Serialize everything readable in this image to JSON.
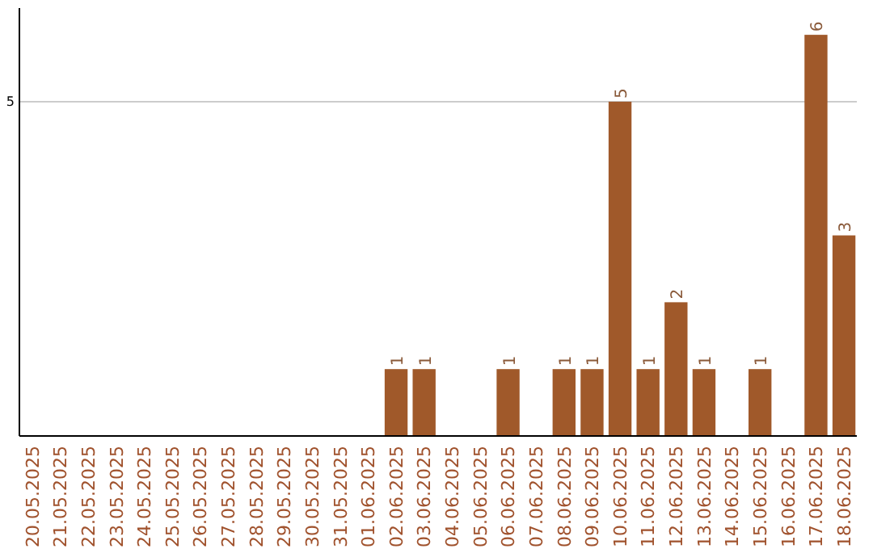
{
  "chart_data": {
    "type": "bar",
    "categories": [
      "20.05.2025",
      "21.05.2025",
      "22.05.2025",
      "23.05.2025",
      "24.05.2025",
      "25.05.2025",
      "26.05.2025",
      "27.05.2025",
      "28.05.2025",
      "29.05.2025",
      "30.05.2025",
      "31.05.2025",
      "01.06.2025",
      "02.06.2025",
      "03.06.2025",
      "04.06.2025",
      "05.06.2025",
      "06.06.2025",
      "07.06.2025",
      "08.06.2025",
      "09.06.2025",
      "10.06.2025",
      "11.06.2025",
      "12.06.2025",
      "13.06.2025",
      "14.06.2025",
      "15.06.2025",
      "16.06.2025",
      "17.06.2025",
      "18.06.2025"
    ],
    "values": [
      null,
      null,
      null,
      null,
      null,
      null,
      null,
      null,
      null,
      null,
      null,
      null,
      null,
      1,
      1,
      null,
      null,
      1,
      null,
      1,
      1,
      5,
      1,
      2,
      1,
      null,
      1,
      null,
      6,
      3
    ],
    "data_labels": true,
    "color": "#a0592a",
    "ylim": [
      0,
      6.4
    ],
    "yticks": [
      5
    ],
    "grid": "y"
  }
}
